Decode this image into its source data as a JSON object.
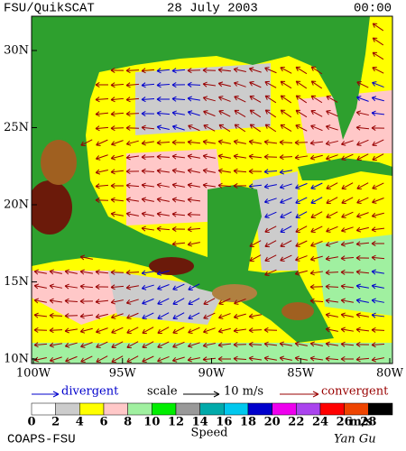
{
  "header": {
    "title": "FSU/QuikSCAT",
    "date": "28 July 2003",
    "time": "00:00"
  },
  "map": {
    "lat_labels": [
      "30N",
      "25N",
      "20N",
      "15N",
      "10N"
    ],
    "lon_labels": [
      "100W",
      "95W",
      "90W",
      "85W",
      "80W"
    ]
  },
  "legend": {
    "divergent": "divergent",
    "scale": "scale",
    "scale_value": "10 m/s",
    "convergent": "convergent"
  },
  "colorbar": {
    "labels": [
      0,
      2,
      4,
      6,
      8,
      10,
      12,
      14,
      16,
      18,
      20,
      22,
      24,
      26,
      28
    ],
    "unit": "m/s",
    "title": "Speed",
    "colors": [
      "#ffffff",
      "#cccccc",
      "#ffff00",
      "#ffc8c8",
      "#a0f0a0",
      "#00ee00",
      "#999999",
      "#00aaaa",
      "#00c8ee",
      "#0000cc",
      "#ee00ee",
      "#aa44ee",
      "#ff0000",
      "#ee4400",
      "#000000"
    ]
  },
  "footer": {
    "left": "COAPS-FSU",
    "right": "Yan Gu"
  }
}
